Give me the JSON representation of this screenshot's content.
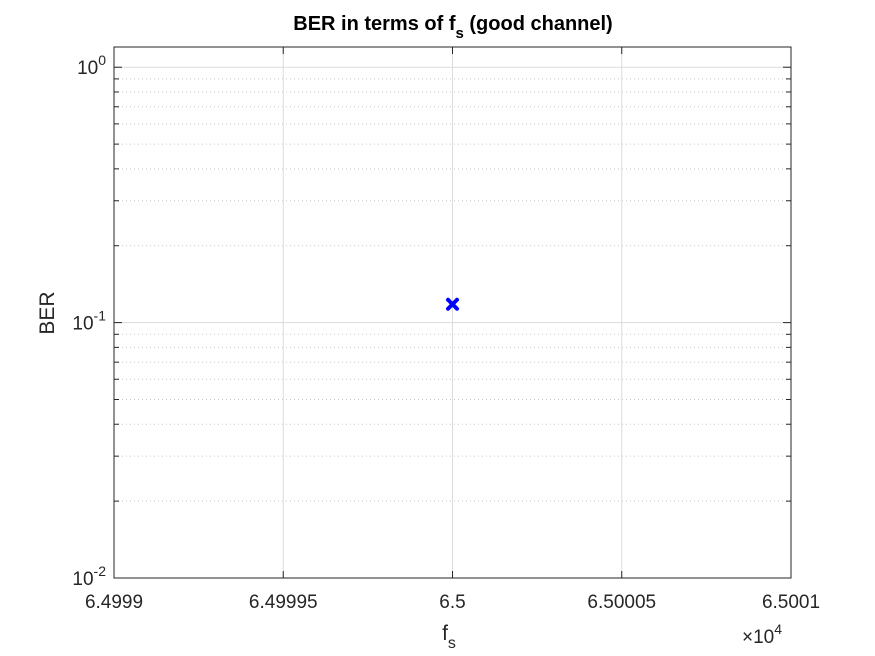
{
  "chart_data": {
    "type": "scatter",
    "title": {
      "main": "BER in terms of f",
      "sub": "s",
      "rest": " (good channel)"
    },
    "xlabel": {
      "main": "f",
      "sub": "s"
    },
    "ylabel": "BER",
    "xscale_exponent_label": {
      "base": "×10",
      "exp": "4"
    },
    "xlim": [
      6.4999,
      6.5001
    ],
    "ylim": [
      0.01,
      1.2
    ],
    "yscale": "log",
    "grid": true,
    "minor_grid_y": true,
    "x_ticks": [
      {
        "value": 6.4999,
        "label": "6.4999"
      },
      {
        "value": 6.49995,
        "label": "6.49995"
      },
      {
        "value": 6.5,
        "label": "6.5"
      },
      {
        "value": 6.50005,
        "label": "6.50005"
      },
      {
        "value": 6.5001,
        "label": "6.5001"
      }
    ],
    "y_ticks": [
      {
        "value": 1,
        "base": "10",
        "exp": "0"
      },
      {
        "value": 0.1,
        "base": "10",
        "exp": "-1"
      },
      {
        "value": 0.01,
        "base": "10",
        "exp": "-2"
      }
    ],
    "series": [
      {
        "x": [
          6.5
        ],
        "y": [
          0.118
        ],
        "marker": "x",
        "color": "#0000ff"
      }
    ]
  }
}
